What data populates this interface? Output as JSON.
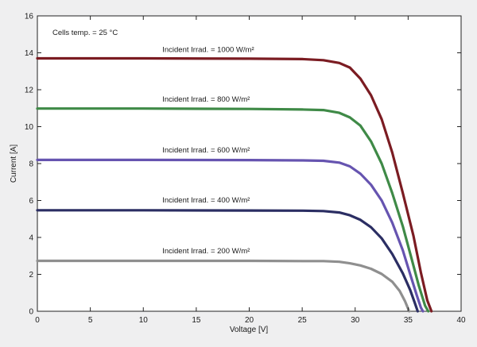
{
  "chart_data": {
    "type": "line",
    "title": "",
    "xlabel": "Voltage [V]",
    "ylabel": "Current  [A]",
    "xlim": [
      0,
      40
    ],
    "ylim": [
      0,
      16
    ],
    "x_ticks": [
      0,
      5,
      10,
      15,
      20,
      25,
      30,
      35,
      40
    ],
    "y_ticks": [
      0,
      2,
      4,
      6,
      8,
      10,
      12,
      14,
      16
    ],
    "grid": false,
    "legend": "none",
    "note": "Cells temp. = 25 °C",
    "series": [
      {
        "label": "Incident Irrad. = 1000 W/m²",
        "color": "#7b1c22",
        "points": [
          [
            0,
            13.7
          ],
          [
            10,
            13.7
          ],
          [
            20,
            13.68
          ],
          [
            25,
            13.66
          ],
          [
            27,
            13.6
          ],
          [
            28.5,
            13.45
          ],
          [
            29.5,
            13.2
          ],
          [
            30.5,
            12.6
          ],
          [
            31.5,
            11.7
          ],
          [
            32.5,
            10.4
          ],
          [
            33.5,
            8.6
          ],
          [
            34.5,
            6.4
          ],
          [
            35.5,
            4.1
          ],
          [
            36.2,
            2.1
          ],
          [
            36.8,
            0.6
          ],
          [
            37.2,
            0
          ]
        ]
      },
      {
        "label": "Incident Irrad. = 800 W/m²",
        "color": "#3f8a47",
        "points": [
          [
            0,
            10.98
          ],
          [
            10,
            10.98
          ],
          [
            20,
            10.96
          ],
          [
            25,
            10.93
          ],
          [
            27,
            10.9
          ],
          [
            28.5,
            10.75
          ],
          [
            29.5,
            10.5
          ],
          [
            30.5,
            10.05
          ],
          [
            31.5,
            9.2
          ],
          [
            32.5,
            8.0
          ],
          [
            33.5,
            6.4
          ],
          [
            34.5,
            4.6
          ],
          [
            35.3,
            2.9
          ],
          [
            36,
            1.4
          ],
          [
            36.6,
            0.3
          ],
          [
            36.9,
            0
          ]
        ]
      },
      {
        "label": "Incident Irrad. = 600 W/m²",
        "color": "#6654b0",
        "points": [
          [
            0,
            8.2
          ],
          [
            10,
            8.2
          ],
          [
            20,
            8.19
          ],
          [
            25,
            8.17
          ],
          [
            27,
            8.15
          ],
          [
            28.5,
            8.05
          ],
          [
            29.5,
            7.85
          ],
          [
            30.5,
            7.45
          ],
          [
            31.5,
            6.85
          ],
          [
            32.5,
            6.0
          ],
          [
            33.5,
            4.8
          ],
          [
            34.5,
            3.3
          ],
          [
            35.2,
            2.0
          ],
          [
            35.8,
            0.9
          ],
          [
            36.2,
            0.2
          ],
          [
            36.4,
            0
          ]
        ]
      },
      {
        "label": "Incident Irrad. = 400 W/m²",
        "color": "#2b2e63",
        "points": [
          [
            0,
            5.47
          ],
          [
            10,
            5.47
          ],
          [
            20,
            5.46
          ],
          [
            25,
            5.45
          ],
          [
            27,
            5.43
          ],
          [
            28.5,
            5.35
          ],
          [
            29.5,
            5.2
          ],
          [
            30.5,
            4.95
          ],
          [
            31.5,
            4.55
          ],
          [
            32.5,
            3.95
          ],
          [
            33.5,
            3.1
          ],
          [
            34.5,
            2.05
          ],
          [
            35.2,
            1.15
          ],
          [
            35.6,
            0.5
          ],
          [
            35.9,
            0
          ]
        ]
      },
      {
        "label": "Incident Irrad. = 200 W/m²",
        "color": "#8f8f8f",
        "points": [
          [
            0,
            2.73
          ],
          [
            10,
            2.73
          ],
          [
            20,
            2.73
          ],
          [
            25,
            2.72
          ],
          [
            27,
            2.72
          ],
          [
            28.5,
            2.68
          ],
          [
            29.5,
            2.6
          ],
          [
            30.5,
            2.48
          ],
          [
            31.5,
            2.3
          ],
          [
            32.5,
            2.02
          ],
          [
            33.5,
            1.6
          ],
          [
            34.2,
            1.1
          ],
          [
            34.7,
            0.55
          ],
          [
            35.1,
            0
          ]
        ]
      }
    ],
    "annotations": [
      {
        "series_index": 0,
        "text": "Incident Irrad. = 1000 W/m²",
        "x": 11.8,
        "y": 14.05
      },
      {
        "series_index": 1,
        "text": "Incident Irrad. = 800 W/m²",
        "x": 11.8,
        "y": 11.35
      },
      {
        "series_index": 2,
        "text": "Incident Irrad. = 600 W/m²",
        "x": 11.8,
        "y": 8.6
      },
      {
        "series_index": 3,
        "text": "Incident Irrad. = 400 W/m²",
        "x": 11.8,
        "y": 5.9
      },
      {
        "series_index": 4,
        "text": "Incident Irrad. = 200 W/m²",
        "x": 11.8,
        "y": 3.15
      }
    ]
  }
}
